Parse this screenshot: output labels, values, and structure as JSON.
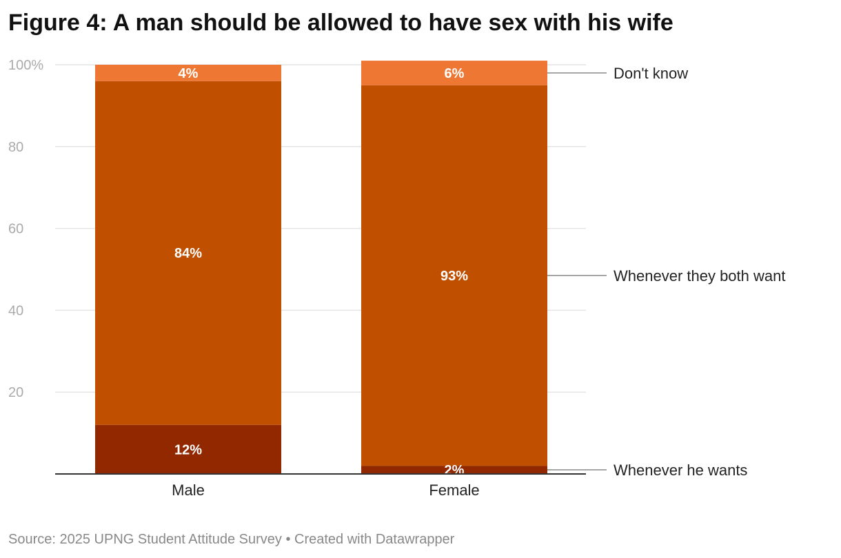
{
  "title": "Figure 4: A man should be allowed to have sex with his wife",
  "source": "Source: 2025 UPNG Student Attitude Survey • Created with Datawrapper",
  "colors": {
    "whenever_he_wants": "#922800",
    "whenever_they_both_want": "#c05000",
    "dont_know": "#ee7733",
    "grid": "#e4e4e4",
    "baseline": "#333333",
    "tick_text": "#aaaaaa",
    "leader": "#888888"
  },
  "chart_data": {
    "type": "bar",
    "stacked": true,
    "title": "Figure 4: A man should be allowed to have sex with his wife",
    "xlabel": "",
    "ylabel": "",
    "ylim": [
      0,
      100
    ],
    "yticks": [
      20,
      40,
      60,
      80,
      100
    ],
    "ytick_labels": [
      "20",
      "40",
      "60",
      "80",
      "100%"
    ],
    "categories": [
      "Male",
      "Female"
    ],
    "series": [
      {
        "name": "Whenever he wants",
        "values": [
          12,
          2
        ],
        "labels": [
          "12%",
          "2%"
        ]
      },
      {
        "name": "Whenever they both want",
        "values": [
          84,
          93
        ],
        "labels": [
          "84%",
          "93%"
        ]
      },
      {
        "name": "Don't know",
        "values": [
          4,
          6
        ],
        "labels": [
          "4%",
          "6%"
        ]
      }
    ],
    "legend_placement": "right, direct labels"
  }
}
